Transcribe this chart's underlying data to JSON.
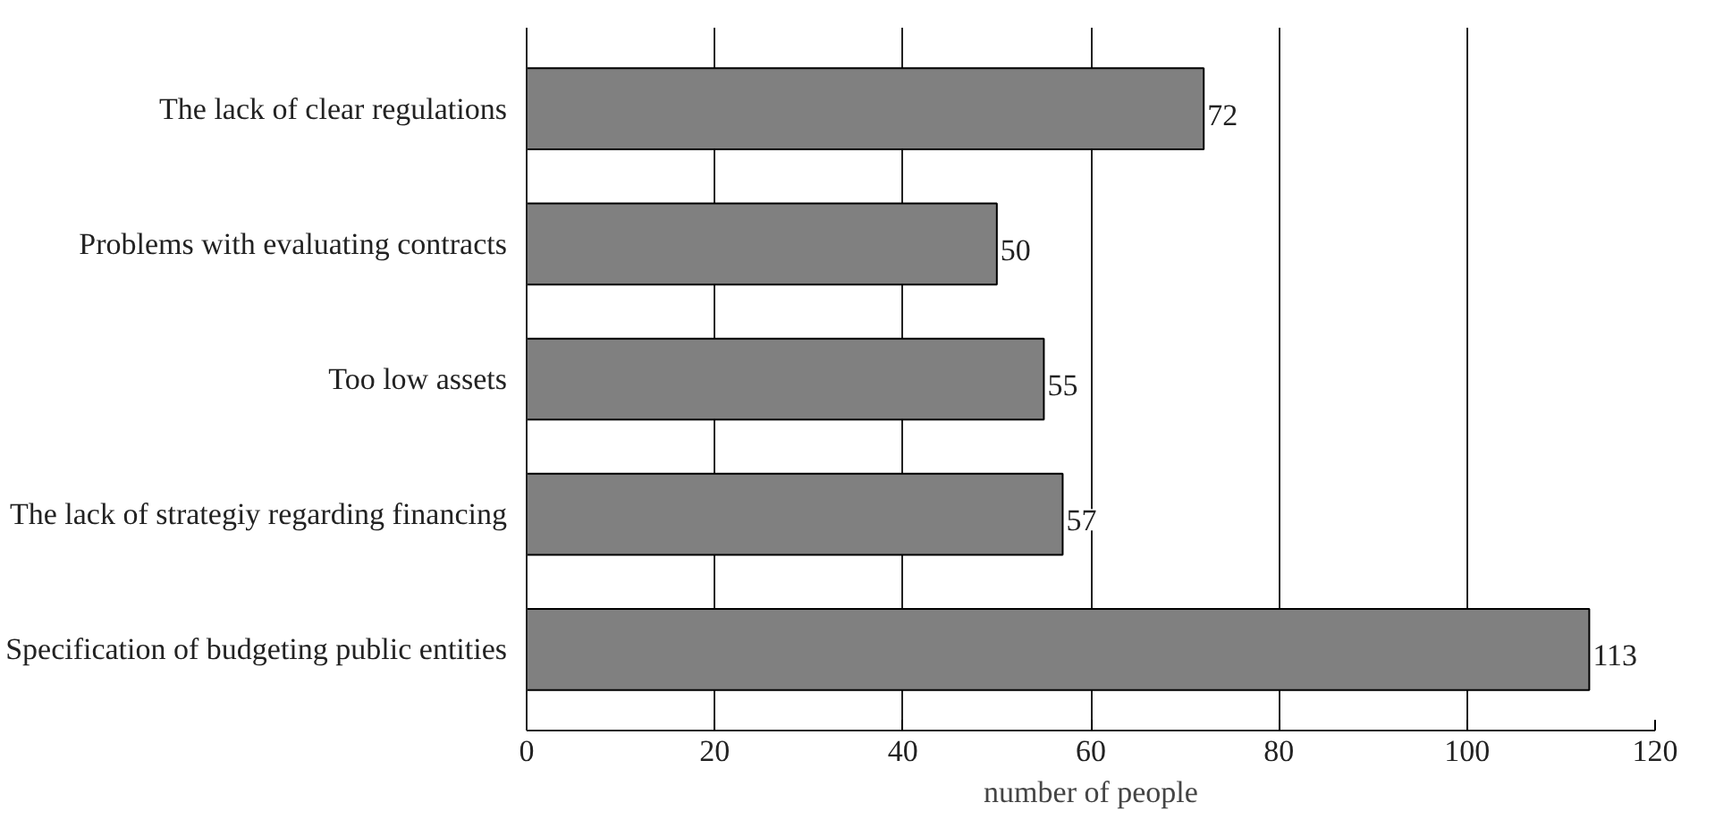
{
  "chart_data": {
    "type": "bar",
    "orientation": "horizontal",
    "categories": [
      "The lack of clear regulations",
      "Problems with evaluating contracts",
      "Too low assets",
      "The lack of strategiy regarding financing",
      "Specification of budgeting public entities"
    ],
    "values": [
      72,
      50,
      55,
      57,
      113
    ],
    "color": "#808080",
    "data_labels": true,
    "xlabel": "number of people",
    "xlim": [
      0,
      120
    ],
    "xticks": [
      0,
      20,
      40,
      60,
      80,
      100,
      120
    ],
    "grid": "x"
  }
}
